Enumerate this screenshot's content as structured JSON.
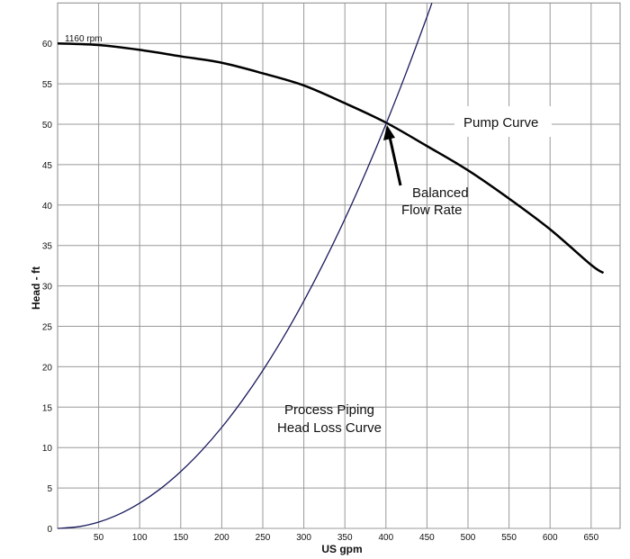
{
  "chart_data": {
    "type": "line",
    "title": "",
    "xlabel": "US gpm",
    "ylabel": "Head - ft",
    "xlim": [
      0,
      685
    ],
    "ylim": [
      0,
      65
    ],
    "xticks": [
      50,
      100,
      150,
      200,
      250,
      300,
      350,
      400,
      450,
      500,
      550,
      600,
      650
    ],
    "yticks": [
      0,
      5,
      10,
      15,
      20,
      25,
      30,
      35,
      40,
      45,
      50,
      55,
      60
    ],
    "grid": true,
    "series": [
      {
        "name": "Pump Curve",
        "color": "#000000",
        "x": [
          0,
          50,
          100,
          150,
          200,
          250,
          300,
          350,
          400,
          450,
          500,
          550,
          600,
          650,
          665
        ],
        "y": [
          60,
          59.8,
          59.2,
          58.4,
          57.6,
          56.3,
          54.8,
          52.6,
          50.2,
          47.3,
          44.3,
          40.8,
          37,
          32.6,
          31.6
        ]
      },
      {
        "name": "Process Piping Head Loss Curve",
        "color": "#1a1a5e",
        "x": [
          0,
          25,
          50,
          75,
          100,
          125,
          150,
          175,
          200,
          225,
          250,
          275,
          300,
          325,
          350,
          375,
          400,
          425,
          450,
          456
        ],
        "y": [
          0,
          0.2,
          0.78,
          1.76,
          3.13,
          4.88,
          7.03,
          9.57,
          12.5,
          15.82,
          19.53,
          23.63,
          28.13,
          33.01,
          38.28,
          43.95,
          50,
          56.45,
          63.28,
          65
        ]
      }
    ],
    "annotations": {
      "rpm": "1160 rpm",
      "pump_curve": "Pump Curve",
      "balanced_line1": "Balanced",
      "balanced_line2": "Flow Rate",
      "piping_line1": "Process Piping",
      "piping_line2": "Head Loss Curve"
    },
    "balanced_point": {
      "x": 400,
      "y": 50
    }
  }
}
